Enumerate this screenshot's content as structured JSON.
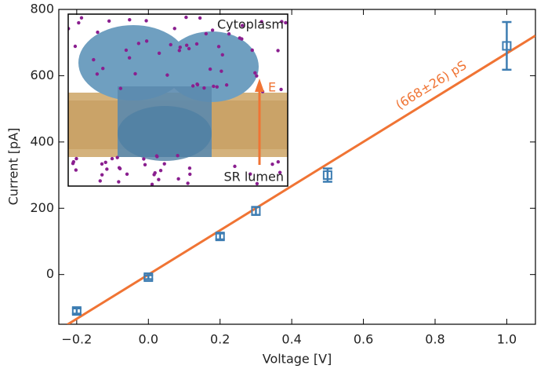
{
  "chart_data": {
    "type": "scatter",
    "xlabel": "Voltage [V]",
    "ylabel": "Current [pA]",
    "xlim": [
      -0.25,
      1.08
    ],
    "ylim": [
      -150,
      800
    ],
    "xticks": [
      {
        "value": -0.2,
        "label": "−0.2"
      },
      {
        "value": 0,
        "label": "0.0"
      },
      0.2,
      0.4,
      0.6,
      0.8,
      {
        "value": 1,
        "label": "1.0"
      }
    ],
    "yticks": [
      0,
      200,
      400,
      600,
      800
    ],
    "series": [
      {
        "x": [
          -0.2,
          0,
          0.2,
          0.3,
          0.5,
          1.0
        ],
        "values": [
          -110,
          -8,
          115,
          192,
          300,
          690
        ],
        "errors": [
          8,
          6,
          9,
          12,
          20,
          72
        ],
        "color": "#3d7db2"
      }
    ],
    "fit": {
      "x": [
        -0.226,
        1.08
      ],
      "values": [
        -151,
        721
      ],
      "label": "(668±26) pS",
      "color": "#f07434"
    },
    "annotations": [
      "Cytoplasm",
      "E",
      "SR lumen"
    ]
  }
}
